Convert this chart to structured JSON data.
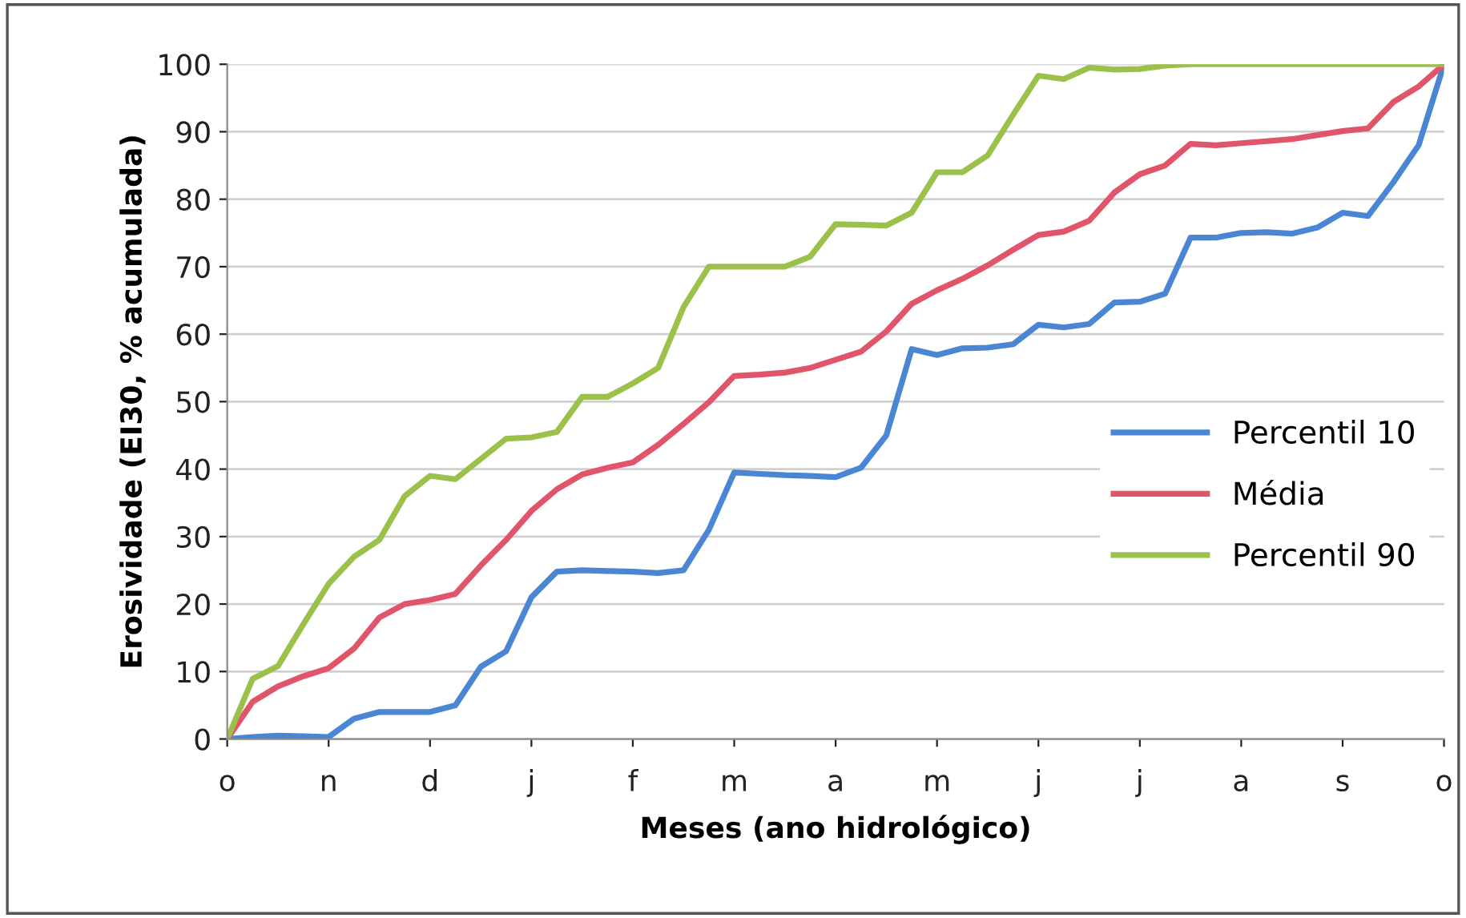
{
  "chart_data": {
    "type": "line",
    "xlabel": "Meses (ano hidrológico)",
    "ylabel": "Erosividade (EI30, % acumulada)",
    "categories": [
      "o",
      null,
      null,
      null,
      "n",
      null,
      null,
      null,
      "d",
      null,
      null,
      null,
      "j",
      null,
      null,
      null,
      "f",
      null,
      null,
      null,
      "m",
      null,
      null,
      null,
      "a",
      null,
      null,
      null,
      "m",
      null,
      null,
      null,
      "j",
      null,
      null,
      null,
      "j",
      null,
      null,
      null,
      "a",
      null,
      null,
      null,
      "s",
      null,
      null,
      null,
      "o"
    ],
    "ylim": [
      0,
      100
    ],
    "yticks": [
      0,
      10,
      20,
      30,
      40,
      50,
      60,
      70,
      80,
      90,
      100
    ],
    "grid": "y",
    "legend": "right",
    "marker": "none",
    "line_style": "solid",
    "series": [
      {
        "name": "Percentil 10",
        "color": "#4a86d4",
        "values": [
          0,
          0.3,
          0.5,
          0.4,
          0.3,
          3,
          4,
          4,
          4,
          5,
          10.7,
          13,
          21,
          24.8,
          25,
          24.9,
          24.8,
          24.6,
          25,
          31,
          39.5,
          39.3,
          39.1,
          39,
          38.8,
          40.2,
          45,
          57.8,
          56.9,
          57.9,
          58,
          58.5,
          61.4,
          61,
          61.5,
          64.7,
          64.8,
          66,
          74.3,
          74.3,
          75,
          75.1,
          74.9,
          75.8,
          78,
          77.5,
          82.5,
          88,
          100
        ]
      },
      {
        "name": "Média",
        "color": "#e0556a",
        "values": [
          0,
          5.5,
          7.8,
          9.3,
          10.5,
          13.4,
          18,
          20,
          20.6,
          21.5,
          25.7,
          29.5,
          33.8,
          37,
          39.2,
          40.2,
          41,
          43.6,
          46.7,
          49.9,
          53.8,
          54,
          54.3,
          55,
          56.2,
          57.4,
          60.4,
          64.5,
          66.5,
          68.2,
          70.2,
          72.5,
          74.7,
          75.2,
          76.8,
          81,
          83.7,
          85,
          88.2,
          88,
          88.3,
          88.6,
          88.9,
          89.5,
          90.1,
          90.5,
          94.4,
          96.7,
          100
        ]
      },
      {
        "name": "Percentil 90",
        "color": "#9bc14a",
        "values": [
          0,
          8.9,
          10.8,
          17,
          23,
          27,
          29.5,
          36,
          39,
          38.5,
          41.5,
          44.5,
          44.7,
          45.5,
          50.7,
          50.7,
          52.7,
          55,
          64,
          70,
          70,
          70,
          70,
          71.5,
          76.3,
          76.2,
          76.1,
          78,
          84,
          84,
          86.5,
          92.5,
          98.3,
          97.8,
          99.5,
          99.2,
          99.3,
          99.8,
          100,
          100,
          100,
          100,
          100,
          100,
          100,
          100,
          100,
          100,
          100
        ]
      }
    ]
  }
}
